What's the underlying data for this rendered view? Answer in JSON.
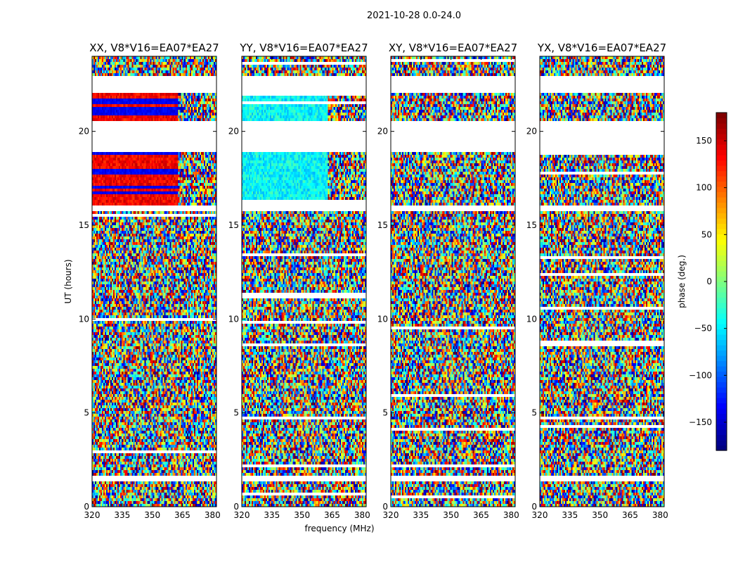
{
  "suptitle": "2021-10-28 0.0-24.0",
  "chart_data": {
    "type": "heatmap",
    "panels": [
      {
        "title": "XX, V8*V16=EA07*EA27",
        "polarization": "XX",
        "mode": "xx"
      },
      {
        "title": "YY, V8*V16=EA07*EA27",
        "polarization": "YY",
        "mode": "yy"
      },
      {
        "title": "XY, V8*V16=EA07*EA27",
        "polarization": "XY",
        "mode": "noise"
      },
      {
        "title": "YX, V8*V16=EA07*EA27",
        "polarization": "YX",
        "mode": "noise"
      }
    ],
    "xlabel": "frequency (MHz)",
    "ylabel": "UT (hours)",
    "xlim": [
      320,
      382
    ],
    "ylim": [
      0,
      24
    ],
    "xticks": [
      320,
      335,
      350,
      365,
      380
    ],
    "xtick_labels": [
      "320",
      "335",
      "350",
      "365",
      "380"
    ],
    "yticks": [
      0,
      5,
      10,
      15,
      20
    ],
    "ytick_labels": [
      "0",
      "5",
      "10",
      "15",
      "20"
    ],
    "flagged_gaps_hours": [
      [
        1.4,
        1.7
      ],
      [
        15.8,
        16.1
      ],
      [
        18.9,
        20.5
      ],
      [
        22.0,
        22.9
      ]
    ],
    "colorbar": {
      "label": "phase (deg.)",
      "range": [
        -180,
        180
      ],
      "ticks": [
        -150,
        -100,
        -50,
        0,
        50,
        100,
        150
      ],
      "tick_labels": [
        "−150",
        "−100",
        "−50",
        "0",
        "50",
        "100",
        "150"
      ],
      "colormap": "jet"
    }
  }
}
